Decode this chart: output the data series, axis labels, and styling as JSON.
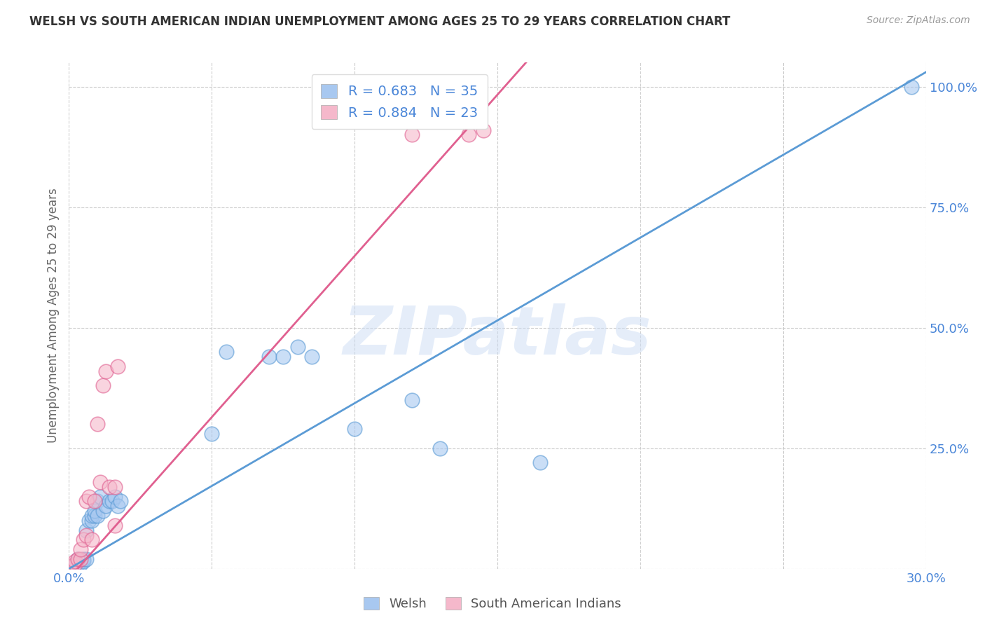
{
  "title": "WELSH VS SOUTH AMERICAN INDIAN UNEMPLOYMENT AMONG AGES 25 TO 29 YEARS CORRELATION CHART",
  "source": "Source: ZipAtlas.com",
  "ylabel": "Unemployment Among Ages 25 to 29 years",
  "xlim": [
    0.0,
    0.3
  ],
  "ylim": [
    0.0,
    1.05
  ],
  "xticks": [
    0.0,
    0.05,
    0.1,
    0.15,
    0.2,
    0.25,
    0.3
  ],
  "xticklabels": [
    "0.0%",
    "",
    "",
    "",
    "",
    "",
    "30.0%"
  ],
  "yticks": [
    0.0,
    0.25,
    0.5,
    0.75,
    1.0
  ],
  "yticklabels": [
    "",
    "25.0%",
    "50.0%",
    "75.0%",
    "100.0%"
  ],
  "welsh_R": 0.683,
  "welsh_N": 35,
  "sai_R": 0.884,
  "sai_N": 23,
  "welsh_color": "#a8c8f0",
  "sai_color": "#f5b8cb",
  "welsh_line_color": "#5b9bd5",
  "sai_line_color": "#e06090",
  "welsh_x": [
    0.001,
    0.002,
    0.003,
    0.003,
    0.004,
    0.005,
    0.005,
    0.006,
    0.006,
    0.007,
    0.008,
    0.008,
    0.009,
    0.009,
    0.01,
    0.01,
    0.011,
    0.012,
    0.013,
    0.014,
    0.015,
    0.016,
    0.017,
    0.018,
    0.05,
    0.055,
    0.07,
    0.075,
    0.08,
    0.085,
    0.1,
    0.12,
    0.13,
    0.165,
    0.295
  ],
  "welsh_y": [
    0.005,
    0.005,
    0.01,
    0.02,
    0.01,
    0.015,
    0.02,
    0.02,
    0.08,
    0.1,
    0.1,
    0.11,
    0.11,
    0.12,
    0.11,
    0.14,
    0.15,
    0.12,
    0.13,
    0.14,
    0.14,
    0.15,
    0.13,
    0.14,
    0.28,
    0.45,
    0.44,
    0.44,
    0.46,
    0.44,
    0.29,
    0.35,
    0.25,
    0.22,
    1.0
  ],
  "sai_x": [
    0.001,
    0.002,
    0.002,
    0.003,
    0.004,
    0.004,
    0.005,
    0.006,
    0.006,
    0.007,
    0.008,
    0.009,
    0.01,
    0.011,
    0.012,
    0.013,
    0.014,
    0.016,
    0.016,
    0.017,
    0.12,
    0.14,
    0.145
  ],
  "sai_y": [
    0.005,
    0.01,
    0.015,
    0.02,
    0.02,
    0.04,
    0.06,
    0.07,
    0.14,
    0.15,
    0.06,
    0.14,
    0.3,
    0.18,
    0.38,
    0.41,
    0.17,
    0.09,
    0.17,
    0.42,
    0.9,
    0.9,
    0.91
  ],
  "welsh_line_x0": 0.0,
  "welsh_line_y0": 0.0,
  "welsh_line_x1": 0.3,
  "welsh_line_y1": 1.03,
  "sai_line_x0": 0.0,
  "sai_line_y0": -0.02,
  "sai_line_x1": 0.16,
  "sai_line_y1": 1.05,
  "watermark": "ZIPatlas",
  "background_color": "#ffffff",
  "grid_color": "#cccccc"
}
